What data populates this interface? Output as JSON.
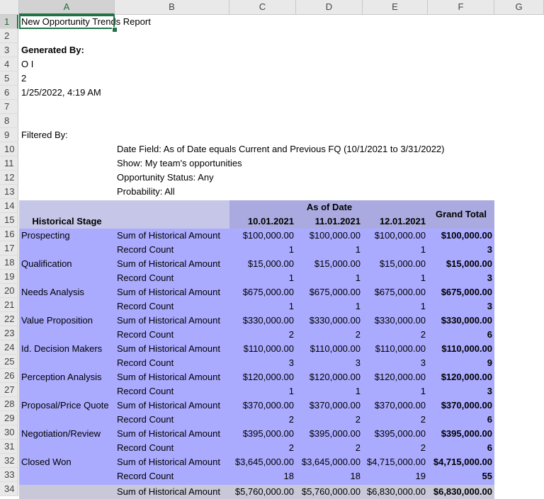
{
  "columns": [
    "A",
    "B",
    "C",
    "D",
    "E",
    "F",
    "G"
  ],
  "rows": [
    "1",
    "2",
    "3",
    "4",
    "5",
    "6",
    "7",
    "8",
    "9",
    "10",
    "11",
    "12",
    "13",
    "14",
    "15",
    "16",
    "17",
    "18",
    "19",
    "20",
    "21",
    "22",
    "23",
    "24",
    "25",
    "26",
    "27",
    "28",
    "29",
    "30",
    "31",
    "32",
    "33",
    "34"
  ],
  "header": {
    "title": "New Opportunity Trends Report",
    "generated_by_label": "Generated By:",
    "user": "O I",
    "number": "2",
    "datetime": "1/25/2022, 4:19 AM",
    "filtered_by_label": "Filtered By:",
    "filters": [
      "Date Field: As of Date equals Current and Previous FQ (10/1/2021 to 3/31/2022)",
      "Show: My team's opportunities",
      "Opportunity Status: Any",
      "Probability: All"
    ]
  },
  "pivot": {
    "as_of_date_label": "As of Date",
    "grand_total_label": "Grand Total",
    "historical_stage_label": "Historical Stage",
    "dates": [
      "10.01.2021",
      "11.01.2021",
      "12.01.2021"
    ],
    "stages": [
      {
        "name": "Prospecting",
        "amount_label": "Sum of Historical Amount",
        "amounts": [
          "$100,000.00",
          "$100,000.00",
          "$100,000.00"
        ],
        "amount_total": "$100,000.00",
        "count_label": "Record Count",
        "counts": [
          "1",
          "1",
          "1"
        ],
        "count_total": "3"
      },
      {
        "name": "Qualification",
        "amount_label": "Sum of Historical Amount",
        "amounts": [
          "$15,000.00",
          "$15,000.00",
          "$15,000.00"
        ],
        "amount_total": "$15,000.00",
        "count_label": "Record Count",
        "counts": [
          "1",
          "1",
          "1"
        ],
        "count_total": "3"
      },
      {
        "name": "Needs Analysis",
        "amount_label": "Sum of Historical Amount",
        "amounts": [
          "$675,000.00",
          "$675,000.00",
          "$675,000.00"
        ],
        "amount_total": "$675,000.00",
        "count_label": "Record Count",
        "counts": [
          "1",
          "1",
          "1"
        ],
        "count_total": "3"
      },
      {
        "name": "Value Proposition",
        "amount_label": "Sum of Historical Amount",
        "amounts": [
          "$330,000.00",
          "$330,000.00",
          "$330,000.00"
        ],
        "amount_total": "$330,000.00",
        "count_label": "Record Count",
        "counts": [
          "2",
          "2",
          "2"
        ],
        "count_total": "6"
      },
      {
        "name": "Id. Decision Makers",
        "amount_label": "Sum of Historical Amount",
        "amounts": [
          "$110,000.00",
          "$110,000.00",
          "$110,000.00"
        ],
        "amount_total": "$110,000.00",
        "count_label": "Record Count",
        "counts": [
          "3",
          "3",
          "3"
        ],
        "count_total": "9"
      },
      {
        "name": "Perception Analysis",
        "amount_label": "Sum of Historical Amount",
        "amounts": [
          "$120,000.00",
          "$120,000.00",
          "$120,000.00"
        ],
        "amount_total": "$120,000.00",
        "count_label": "Record Count",
        "counts": [
          "1",
          "1",
          "1"
        ],
        "count_total": "3"
      },
      {
        "name": "Proposal/Price Quote",
        "amount_label": "Sum of Historical Amount",
        "amounts": [
          "$370,000.00",
          "$370,000.00",
          "$370,000.00"
        ],
        "amount_total": "$370,000.00",
        "count_label": "Record Count",
        "counts": [
          "2",
          "2",
          "2"
        ],
        "count_total": "6"
      },
      {
        "name": "Negotiation/Review",
        "amount_label": "Sum of Historical Amount",
        "amounts": [
          "$395,000.00",
          "$395,000.00",
          "$395,000.00"
        ],
        "amount_total": "$395,000.00",
        "count_label": "Record Count",
        "counts": [
          "2",
          "2",
          "2"
        ],
        "count_total": "6"
      },
      {
        "name": "Closed Won",
        "amount_label": "Sum of Historical Amount",
        "amounts": [
          "$3,645,000.00",
          "$3,645,000.00",
          "$4,715,000.00"
        ],
        "amount_total": "$4,715,000.00",
        "count_label": "Record Count",
        "counts": [
          "18",
          "18",
          "19"
        ],
        "count_total": "55"
      }
    ],
    "grand_total_row": {
      "amount_label": "Sum of Historical Amount",
      "amounts": [
        "$5,760,000.00",
        "$5,760,000.00",
        "$6,830,000.00"
      ],
      "amount_total": "$6,830,000.00"
    }
  }
}
